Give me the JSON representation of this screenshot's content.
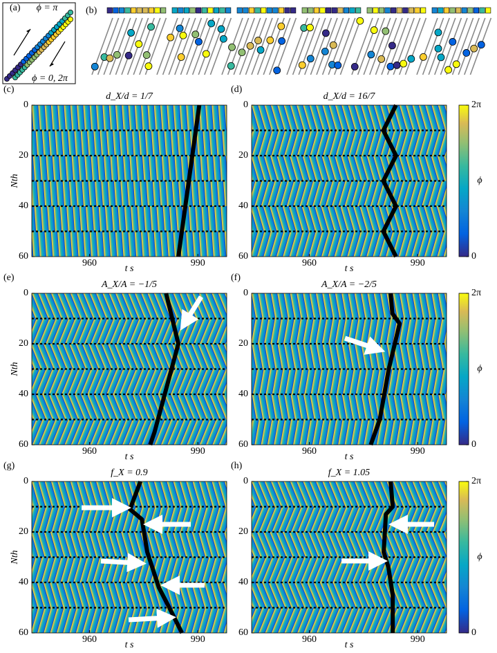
{
  "schematic": {
    "a": {
      "label": "(a)",
      "top": "ϕ = π",
      "bottom": "ϕ = 0, 2π"
    },
    "b": {
      "label": "(b)"
    }
  },
  "chart_data": [
    {
      "type": "heatmap",
      "panel": "(c)",
      "title": "d_X/d = 1/7",
      "xlabel": "t s",
      "ylabel": "Nth",
      "xlim": [
        944,
        998
      ],
      "ylim": [
        0,
        60
      ],
      "xticks": [
        960,
        990
      ],
      "yticks": [
        0,
        20,
        40,
        60
      ],
      "dashed_rows": [
        10,
        20,
        30,
        40,
        50
      ],
      "trace": {
        "x": [
          990.4,
          984.6
        ],
        "y": [
          0,
          60
        ]
      }
    },
    {
      "type": "heatmap",
      "panel": "(d)",
      "title": "d_X/d = 16/7",
      "xlabel": "t s",
      "xlim": [
        944,
        998
      ],
      "ylim": [
        0,
        60
      ],
      "xticks": [
        960,
        990
      ],
      "yticks": [
        0,
        20,
        40,
        60
      ],
      "dashed_rows": [
        10,
        20,
        30,
        40,
        50
      ],
      "trace": {
        "x": [
          984,
          980.5,
          984,
          980.5,
          984,
          980.5,
          984
        ],
        "y": [
          0,
          10,
          20,
          30,
          40,
          50,
          60
        ]
      },
      "colorbar": {
        "label": "ϕ",
        "lim": [
          0,
          6.2832
        ],
        "ticks": [
          0,
          {
            "value": 6.2832,
            "label": "2π"
          }
        ]
      }
    },
    {
      "type": "heatmap",
      "panel": "(e)",
      "title": "A_X/A = −1/5",
      "xlabel": "t s",
      "ylabel": "Nth",
      "xlim": [
        944,
        998
      ],
      "ylim": [
        0,
        60
      ],
      "xticks": [
        960,
        990
      ],
      "yticks": [
        0,
        20,
        40,
        60
      ],
      "dashed_rows": [
        10,
        20,
        30,
        40,
        50
      ],
      "trace": {
        "x": [
          981.2,
          984.6,
          978,
          976.8
        ],
        "y": [
          0,
          20,
          55,
          60
        ]
      }
    },
    {
      "type": "heatmap",
      "panel": "(f)",
      "title": "A_X/A = −2/5",
      "xlabel": "t s",
      "xlim": [
        944,
        998
      ],
      "ylim": [
        0,
        60
      ],
      "xticks": [
        960,
        990
      ],
      "yticks": [
        0,
        20,
        40,
        60
      ],
      "dashed_rows": [
        10,
        20,
        30,
        40,
        50
      ],
      "trace": {
        "x": [
          982.5,
          983,
          985,
          982,
          979.5,
          977
        ],
        "y": [
          0,
          8,
          12,
          30,
          50,
          60
        ]
      },
      "colorbar": {
        "label": "ϕ",
        "lim": [
          0,
          6.2832
        ],
        "ticks": [
          0,
          {
            "value": 6.2832,
            "label": "2π"
          }
        ]
      }
    },
    {
      "type": "heatmap",
      "panel": "(g)",
      "title": "f_X = 0.9",
      "xlabel": "t s",
      "ylabel": "Nth",
      "xlim": [
        944,
        998
      ],
      "ylim": [
        0,
        60
      ],
      "xticks": [
        960,
        990
      ],
      "yticks": [
        0,
        20,
        40,
        60
      ],
      "dashed_rows": [
        10,
        20,
        30,
        40,
        50
      ],
      "trace": {
        "x": [
          974.1,
          971.2,
          974.5,
          976,
          979.2,
          982.1,
          985.6
        ],
        "y": [
          0,
          11,
          15,
          28,
          42,
          50,
          60
        ]
      }
    },
    {
      "type": "heatmap",
      "panel": "(h)",
      "title": "f_X = 1.05",
      "xlabel": "t s",
      "xlim": [
        944,
        998
      ],
      "ylim": [
        0,
        60
      ],
      "xticks": [
        960,
        990
      ],
      "yticks": [
        0,
        20,
        40,
        60
      ],
      "dashed_rows": [
        10,
        20,
        30,
        40,
        50
      ],
      "trace": {
        "x": [
          982.5,
          983.1,
          981.2,
          980.6,
          981.9,
          983.1,
          983.1
        ],
        "y": [
          0,
          10,
          13,
          28,
          34,
          45,
          60
        ]
      },
      "colorbar": {
        "label": "ϕ",
        "lim": [
          0,
          6.2832
        ],
        "ticks": [
          0,
          {
            "value": 6.2832,
            "label": "2π"
          }
        ]
      }
    }
  ]
}
